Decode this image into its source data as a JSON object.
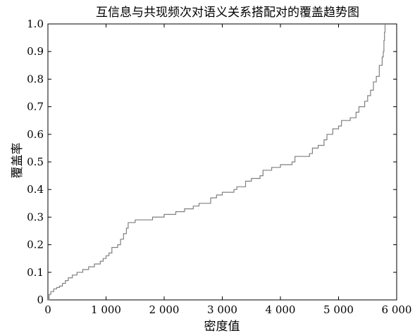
{
  "chart_data": {
    "type": "line",
    "title": "互信息与共现频次对语义关系搭配对的覆盖趋势图",
    "xlabel": "密度值",
    "ylabel": "覆盖率",
    "xlim": [
      0,
      6000
    ],
    "ylim": [
      0,
      1.0
    ],
    "xticks": [
      0,
      1000,
      2000,
      3000,
      4000,
      5000,
      6000
    ],
    "xtick_labels": [
      "0",
      "1 000",
      "2 000",
      "3 000",
      "4 000",
      "5 000",
      "6 000"
    ],
    "yticks": [
      0,
      0.1,
      0.2,
      0.3,
      0.4,
      0.5,
      0.6,
      0.7,
      0.8,
      0.9,
      1.0
    ],
    "ytick_labels": [
      "0",
      "0.1",
      "0.2",
      "0.3",
      "0.4",
      "0.5",
      "0.6",
      "0.7",
      "0.8",
      "0.9",
      "1.0"
    ],
    "grid": false,
    "line_color": "#808080",
    "series": [
      {
        "step": true,
        "points": [
          [
            0,
            0.0
          ],
          [
            20,
            0.02
          ],
          [
            50,
            0.03
          ],
          [
            100,
            0.04
          ],
          [
            150,
            0.045
          ],
          [
            200,
            0.05
          ],
          [
            250,
            0.06
          ],
          [
            300,
            0.07
          ],
          [
            350,
            0.08
          ],
          [
            420,
            0.09
          ],
          [
            500,
            0.1
          ],
          [
            600,
            0.11
          ],
          [
            700,
            0.12
          ],
          [
            800,
            0.13
          ],
          [
            900,
            0.14
          ],
          [
            950,
            0.15
          ],
          [
            1000,
            0.16
          ],
          [
            1050,
            0.17
          ],
          [
            1100,
            0.19
          ],
          [
            1200,
            0.2
          ],
          [
            1250,
            0.22
          ],
          [
            1300,
            0.24
          ],
          [
            1350,
            0.26
          ],
          [
            1380,
            0.28
          ],
          [
            1500,
            0.29
          ],
          [
            1750,
            0.29
          ],
          [
            1800,
            0.3
          ],
          [
            2000,
            0.31
          ],
          [
            2200,
            0.32
          ],
          [
            2350,
            0.33
          ],
          [
            2500,
            0.34
          ],
          [
            2600,
            0.35
          ],
          [
            2800,
            0.37
          ],
          [
            2900,
            0.38
          ],
          [
            3000,
            0.39
          ],
          [
            3200,
            0.4
          ],
          [
            3250,
            0.41
          ],
          [
            3400,
            0.43
          ],
          [
            3500,
            0.44
          ],
          [
            3650,
            0.45
          ],
          [
            3700,
            0.47
          ],
          [
            3850,
            0.48
          ],
          [
            4000,
            0.49
          ],
          [
            4200,
            0.5
          ],
          [
            4250,
            0.52
          ],
          [
            4500,
            0.53
          ],
          [
            4550,
            0.55
          ],
          [
            4650,
            0.56
          ],
          [
            4750,
            0.58
          ],
          [
            4800,
            0.6
          ],
          [
            4900,
            0.62
          ],
          [
            5000,
            0.63
          ],
          [
            5050,
            0.65
          ],
          [
            5200,
            0.66
          ],
          [
            5300,
            0.68
          ],
          [
            5350,
            0.7
          ],
          [
            5450,
            0.72
          ],
          [
            5500,
            0.74
          ],
          [
            5550,
            0.76
          ],
          [
            5600,
            0.79
          ],
          [
            5650,
            0.81
          ],
          [
            5700,
            0.85
          ],
          [
            5750,
            0.88
          ],
          [
            5770,
            0.9
          ],
          [
            5780,
            0.94
          ],
          [
            5790,
            0.97
          ],
          [
            5800,
            1.0
          ]
        ]
      }
    ]
  }
}
